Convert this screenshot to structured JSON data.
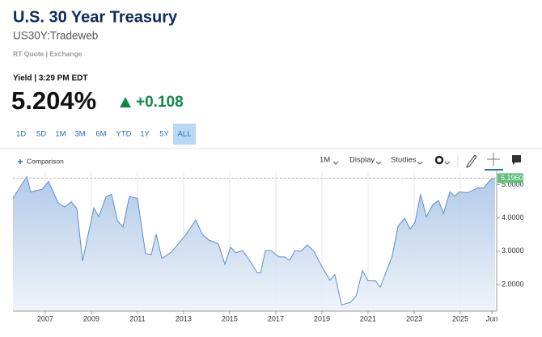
{
  "header": {
    "title": "U.S. 30 Year Treasury",
    "symbol": "US30Y:Tradeweb",
    "quote_type": "RT Quote | Exchange",
    "yield_time": "Yield | 3:29 PM EDT",
    "yield": "5.204%",
    "change": "+0.108"
  },
  "range_buttons": [
    "1D",
    "5D",
    "1M",
    "3M",
    "6M",
    "YTD",
    "1Y",
    "5Y",
    "ALL"
  ],
  "toolbar": {
    "comparison": "Comparison",
    "interval": "1M",
    "display": "Display",
    "studies": "Studies"
  },
  "chart_data": {
    "type": "area",
    "color": "#5b8fc9",
    "x": [
      2005.6,
      2006.2,
      2006.37,
      2006.86,
      2007.14,
      2007.56,
      2007.85,
      2008.13,
      2008.37,
      2008.62,
      2009.11,
      2009.32,
      2009.64,
      2009.88,
      2010.13,
      2010.37,
      2010.65,
      2011.0,
      2011.35,
      2011.6,
      2011.81,
      2012.06,
      2012.48,
      2012.83,
      2013.11,
      2013.53,
      2013.81,
      2014.09,
      2014.51,
      2014.79,
      2015.04,
      2015.28,
      2015.56,
      2015.92,
      2016.2,
      2016.34,
      2016.55,
      2016.79,
      2017.14,
      2017.39,
      2017.6,
      2017.84,
      2018.09,
      2018.37,
      2018.65,
      2019.0,
      2019.35,
      2019.56,
      2019.85,
      2020.23,
      2020.48,
      2020.76,
      2021.0,
      2021.32,
      2021.53,
      2021.81,
      2022.05,
      2022.3,
      2022.58,
      2022.83,
      2023.04,
      2023.28,
      2023.53,
      2023.81,
      2024.06,
      2024.27,
      2024.55,
      2024.76,
      2024.97,
      2025.32,
      2025.74,
      2026.02,
      2026.3,
      2026.51
    ],
    "values": [
      4.59,
      5.24,
      4.78,
      4.86,
      5.1,
      4.45,
      4.33,
      4.49,
      4.28,
      2.71,
      4.3,
      4.04,
      4.64,
      4.71,
      3.92,
      3.72,
      4.64,
      4.59,
      2.93,
      2.9,
      3.51,
      2.78,
      2.98,
      3.27,
      3.51,
      3.94,
      3.51,
      3.34,
      3.22,
      2.61,
      3.12,
      2.95,
      3.02,
      2.66,
      2.35,
      2.35,
      3.02,
      3.02,
      2.83,
      2.83,
      2.73,
      3.02,
      3.0,
      3.19,
      3.0,
      2.54,
      2.13,
      2.3,
      1.39,
      1.46,
      1.65,
      2.42,
      2.11,
      2.11,
      1.92,
      2.42,
      2.86,
      3.75,
      3.99,
      3.67,
      3.87,
      4.71,
      4.04,
      4.4,
      4.52,
      4.13,
      4.78,
      4.66,
      4.78,
      4.76,
      4.9,
      4.9,
      5.14,
      5.2
    ],
    "xlim": [
      2005.6,
      2026.58
    ],
    "xticks": [
      2007,
      2009,
      2011,
      2013,
      2015,
      2017,
      2019,
      2021,
      2023,
      2025,
      {
        "value": 2026.37,
        "label": "Jun"
      }
    ],
    "ylim": [
      1.2,
      5.4
    ],
    "yticks": [
      {
        "value": 2,
        "label": "2.0000"
      },
      {
        "value": 3,
        "label": "3.0000"
      },
      {
        "value": 4,
        "label": "4.0000"
      },
      {
        "value": 5,
        "label": "5.0000"
      }
    ],
    "last_value": {
      "value": 5.196,
      "label": "5.1960"
    },
    "grid": true
  }
}
